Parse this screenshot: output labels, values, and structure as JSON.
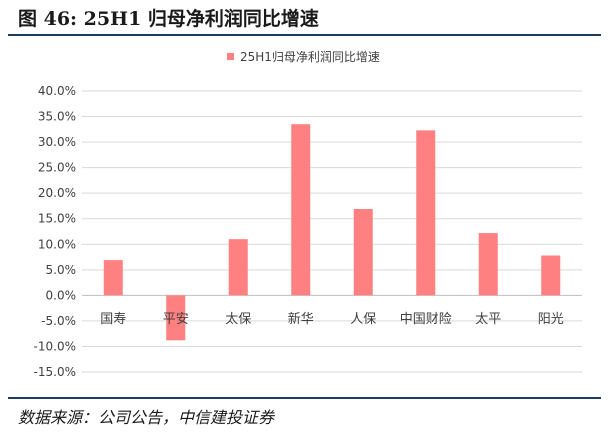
{
  "figure": {
    "title": "图 46: 25H1 归母净利润同比增速",
    "source": "数据来源：公司公告，中信建投证券"
  },
  "colors": {
    "bar": "#ff8080",
    "rule": "#1f3b5c",
    "grid": "#d9d9d9",
    "axis_text": "#404040"
  },
  "chart_data": {
    "type": "bar",
    "legend": {
      "position": "top",
      "entries": [
        "25H1归母净利润同比增速"
      ]
    },
    "categories": [
      "国寿",
      "平安",
      "太保",
      "新华",
      "人保",
      "中国财险",
      "太平",
      "阳光"
    ],
    "series": [
      {
        "name": "25H1归母净利润同比增速",
        "values": [
          6.9,
          -8.8,
          11.0,
          33.5,
          16.9,
          32.3,
          12.2,
          7.8
        ]
      }
    ],
    "y_ticks": [
      "40.0%",
      "35.0%",
      "30.0%",
      "25.0%",
      "20.0%",
      "15.0%",
      "10.0%",
      "5.0%",
      "0.0%",
      "-5.0%",
      "-10.0%",
      "-15.0%"
    ],
    "ylim": [
      -15,
      40
    ],
    "y_unit": "%",
    "grid": true
  }
}
